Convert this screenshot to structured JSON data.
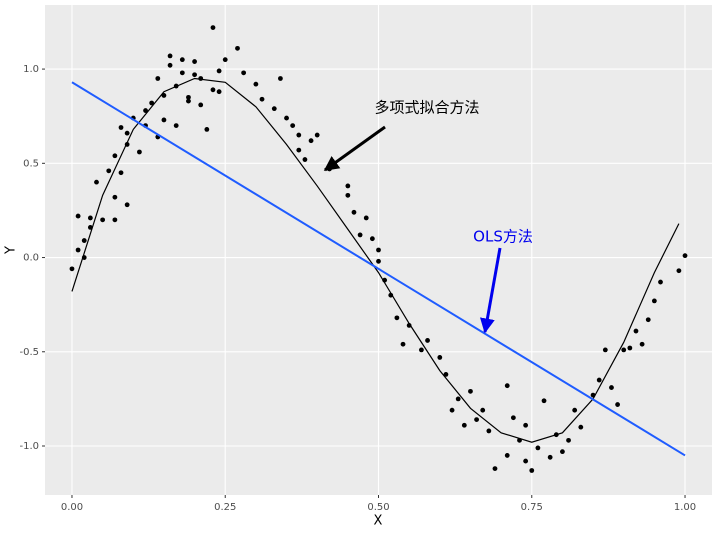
{
  "chart_data": {
    "type": "scatter",
    "x_label": "X",
    "y_label": "Y",
    "xlim": [
      -0.044,
      1.044
    ],
    "ylim": [
      -1.26,
      1.34
    ],
    "xticks": [
      {
        "value": 0,
        "label": "0.00"
      },
      {
        "value": 0.25,
        "label": "0.25"
      },
      {
        "value": 0.5,
        "label": "0.50"
      },
      {
        "value": 0.75,
        "label": "0.75"
      },
      {
        "value": 1,
        "label": "1.00"
      }
    ],
    "yticks": [
      {
        "value": -1,
        "label": "-1.0"
      },
      -0.5,
      {
        "value": 0,
        "label": "0.0"
      },
      0.5,
      {
        "value": 1,
        "label": "1.0"
      }
    ],
    "grid": true,
    "points": {
      "color": "#000000",
      "x": [
        0.0,
        0.01,
        0.01,
        0.02,
        0.02,
        0.03,
        0.03,
        0.04,
        0.05,
        0.06,
        0.07,
        0.07,
        0.07,
        0.08,
        0.08,
        0.09,
        0.09,
        0.09,
        0.1,
        0.11,
        0.12,
        0.12,
        0.13,
        0.14,
        0.14,
        0.15,
        0.15,
        0.16,
        0.16,
        0.17,
        0.17,
        0.18,
        0.18,
        0.19,
        0.19,
        0.2,
        0.2,
        0.21,
        0.21,
        0.22,
        0.23,
        0.23,
        0.24,
        0.24,
        0.25,
        0.27,
        0.28,
        0.3,
        0.31,
        0.33,
        0.34,
        0.35,
        0.36,
        0.37,
        0.37,
        0.38,
        0.39,
        0.4,
        0.42,
        0.45,
        0.45,
        0.46,
        0.47,
        0.48,
        0.49,
        0.5,
        0.5,
        0.51,
        0.52,
        0.53,
        0.54,
        0.55,
        0.57,
        0.58,
        0.6,
        0.61,
        0.62,
        0.63,
        0.64,
        0.65,
        0.66,
        0.67,
        0.68,
        0.69,
        0.71,
        0.71,
        0.72,
        0.73,
        0.74,
        0.74,
        0.75,
        0.76,
        0.77,
        0.78,
        0.79,
        0.8,
        0.81,
        0.82,
        0.83,
        0.85,
        0.86,
        0.87,
        0.88,
        0.89,
        0.9,
        0.91,
        0.92,
        0.93,
        0.94,
        0.95,
        0.96,
        0.99,
        1.0
      ],
      "y": [
        -0.06,
        0.22,
        0.04,
        0.0,
        0.09,
        0.21,
        0.16,
        0.4,
        0.2,
        0.46,
        0.32,
        0.2,
        0.54,
        0.69,
        0.45,
        0.28,
        0.6,
        0.66,
        0.74,
        0.56,
        0.7,
        0.78,
        0.82,
        0.64,
        0.95,
        0.86,
        0.73,
        1.02,
        1.07,
        0.91,
        0.7,
        0.98,
        1.05,
        0.85,
        0.83,
        0.97,
        1.04,
        0.95,
        0.81,
        0.68,
        0.89,
        1.22,
        0.88,
        0.99,
        1.05,
        1.11,
        0.98,
        0.92,
        0.84,
        0.79,
        0.95,
        0.74,
        0.7,
        0.65,
        0.57,
        0.52,
        0.62,
        0.65,
        0.47,
        0.38,
        0.33,
        0.24,
        0.12,
        0.21,
        0.1,
        0.04,
        -0.02,
        -0.12,
        -0.2,
        -0.32,
        -0.46,
        -0.36,
        -0.49,
        -0.44,
        -0.53,
        -0.62,
        -0.81,
        -0.75,
        -0.89,
        -0.71,
        -0.86,
        -0.81,
        -0.92,
        -1.12,
        -0.68,
        -1.05,
        -0.85,
        -0.97,
        -1.08,
        -0.89,
        -1.13,
        -1.01,
        -0.76,
        -1.06,
        -0.94,
        -1.03,
        -0.97,
        -0.81,
        -0.9,
        -0.73,
        -0.65,
        -0.49,
        -0.69,
        -0.78,
        -0.49,
        -0.48,
        -0.39,
        -0.46,
        -0.33,
        -0.23,
        -0.13,
        -0.07,
        0.01
      ]
    },
    "fit_curve": {
      "color": "#000000",
      "x": [
        0,
        0.05,
        0.1,
        0.15,
        0.2,
        0.25,
        0.3,
        0.35,
        0.4,
        0.45,
        0.5,
        0.55,
        0.6,
        0.65,
        0.7,
        0.75,
        0.8,
        0.85,
        0.9,
        0.95,
        0.99
      ],
      "y": [
        -0.18,
        0.33,
        0.68,
        0.88,
        0.95,
        0.93,
        0.8,
        0.6,
        0.38,
        0.15,
        -0.08,
        -0.35,
        -0.6,
        -0.8,
        -0.93,
        -0.98,
        -0.93,
        -0.75,
        -0.45,
        -0.08,
        0.18
      ]
    },
    "ols_line": {
      "color": "#1f5cff",
      "x": [
        0,
        1
      ],
      "y": [
        0.93,
        -1.05
      ]
    },
    "annotations": [
      {
        "text": "多项式拟合方法",
        "color": "#000000"
      },
      {
        "text": "OLS方法",
        "color": "#0000ee"
      }
    ]
  }
}
